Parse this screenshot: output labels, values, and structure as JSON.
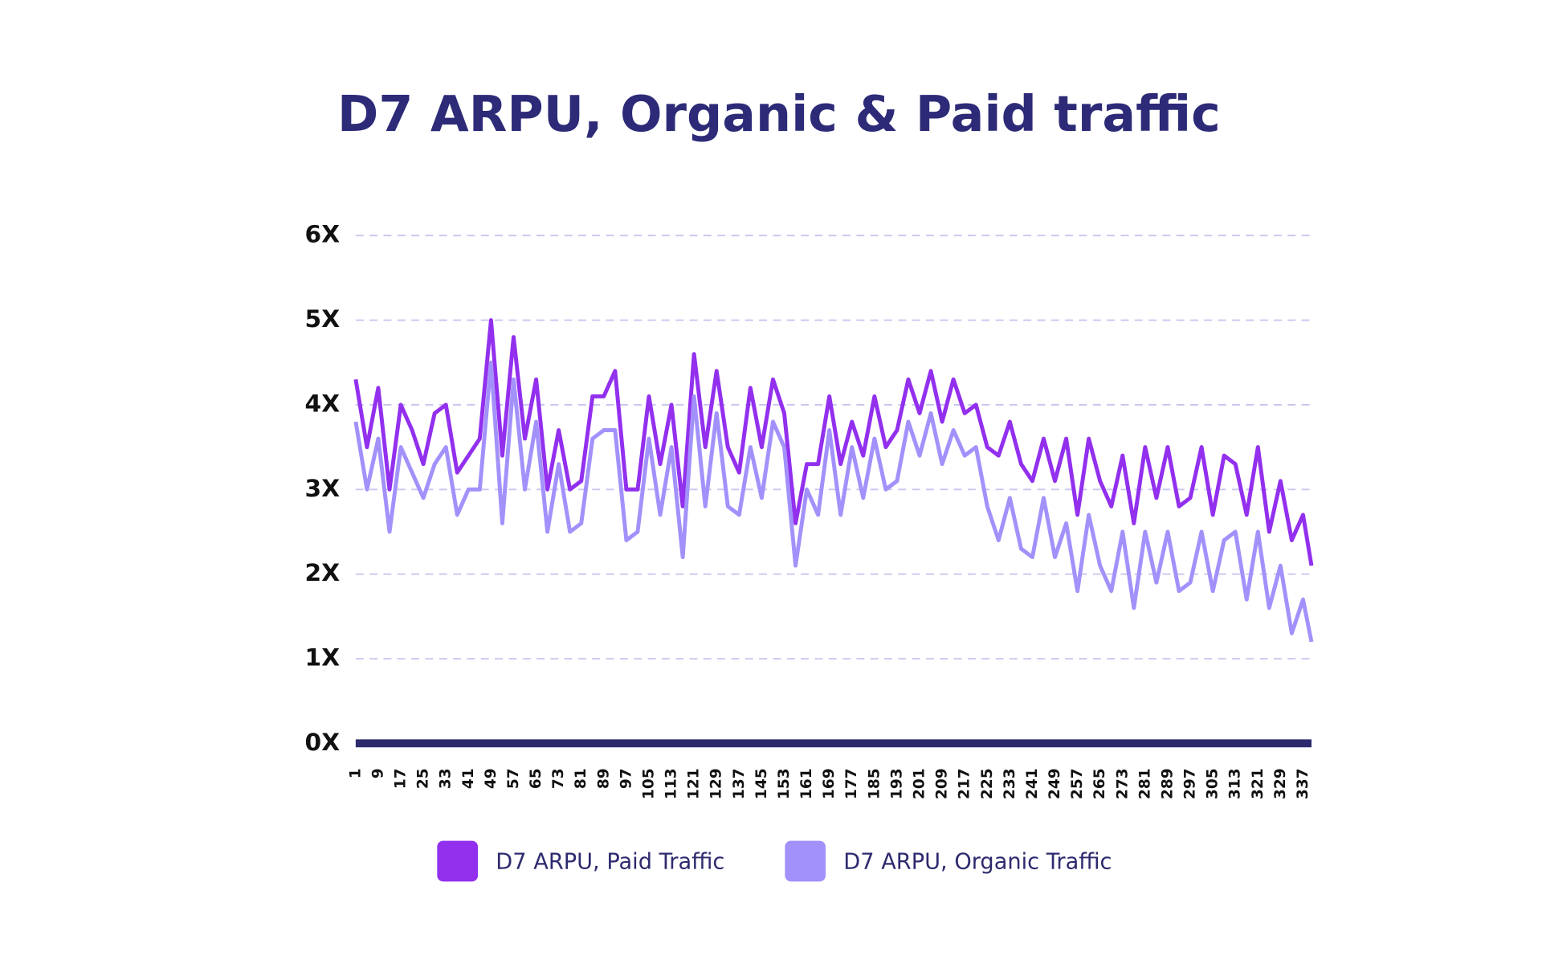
{
  "chart_data": {
    "type": "line",
    "title": "D7 ARPU, Organic & Paid traffic",
    "x": [
      1,
      5,
      9,
      13,
      17,
      21,
      25,
      29,
      33,
      37,
      41,
      45,
      49,
      53,
      57,
      61,
      65,
      69,
      73,
      77,
      81,
      85,
      89,
      93,
      97,
      101,
      105,
      109,
      113,
      117,
      121,
      125,
      129,
      133,
      137,
      141,
      145,
      149,
      153,
      157,
      161,
      165,
      169,
      173,
      177,
      181,
      185,
      189,
      193,
      197,
      201,
      205,
      209,
      213,
      217,
      221,
      225,
      229,
      233,
      237,
      241,
      245,
      249,
      253,
      257,
      261,
      265,
      269,
      273,
      277,
      281,
      285,
      289,
      293,
      297,
      301,
      305,
      309,
      313,
      317,
      321,
      325,
      329,
      333,
      337,
      340
    ],
    "series": [
      {
        "name": "D7 ARPU, Paid Traffic",
        "color": "#9230ee",
        "values": [
          4.3,
          3.5,
          4.2,
          3.0,
          4.0,
          3.7,
          3.3,
          3.9,
          4.0,
          3.2,
          3.4,
          3.6,
          5.0,
          3.4,
          4.8,
          3.6,
          4.3,
          3.0,
          3.7,
          3.0,
          3.1,
          4.1,
          4.1,
          4.4,
          3.0,
          3.0,
          4.1,
          3.3,
          4.0,
          2.8,
          4.6,
          3.5,
          4.4,
          3.5,
          3.2,
          4.2,
          3.5,
          4.3,
          3.9,
          2.6,
          3.3,
          3.3,
          4.1,
          3.3,
          3.8,
          3.4,
          4.1,
          3.5,
          3.7,
          4.3,
          3.9,
          4.4,
          3.8,
          4.3,
          3.9,
          4.0,
          3.5,
          3.4,
          3.8,
          3.3,
          3.1,
          3.6,
          3.1,
          3.6,
          2.7,
          3.6,
          3.1,
          2.8,
          3.4,
          2.6,
          3.5,
          2.9,
          3.5,
          2.8,
          2.9,
          3.5,
          2.7,
          3.4,
          3.3,
          2.7,
          3.5,
          2.5,
          3.1,
          2.4,
          2.7,
          2.1
        ]
      },
      {
        "name": "D7 ARPU, Organic Traffic",
        "color": "#a391fb",
        "values": [
          3.8,
          3.0,
          3.6,
          2.5,
          3.5,
          3.2,
          2.9,
          3.3,
          3.5,
          2.7,
          3.0,
          3.0,
          4.5,
          2.6,
          4.3,
          3.0,
          3.8,
          2.5,
          3.3,
          2.5,
          2.6,
          3.6,
          3.7,
          3.7,
          2.4,
          2.5,
          3.6,
          2.7,
          3.5,
          2.2,
          4.1,
          2.8,
          3.9,
          2.8,
          2.7,
          3.5,
          2.9,
          3.8,
          3.5,
          2.1,
          3.0,
          2.7,
          3.7,
          2.7,
          3.5,
          2.9,
          3.6,
          3.0,
          3.1,
          3.8,
          3.4,
          3.9,
          3.3,
          3.7,
          3.4,
          3.5,
          2.8,
          2.4,
          2.9,
          2.3,
          2.2,
          2.9,
          2.2,
          2.6,
          1.8,
          2.7,
          2.1,
          1.8,
          2.5,
          1.6,
          2.5,
          1.9,
          2.5,
          1.8,
          1.9,
          2.5,
          1.8,
          2.4,
          2.5,
          1.7,
          2.5,
          1.6,
          2.1,
          1.3,
          1.7,
          1.2
        ]
      }
    ],
    "xlim": [
      1,
      340
    ],
    "xticks": [
      1,
      9,
      17,
      25,
      33,
      41,
      49,
      57,
      65,
      73,
      81,
      89,
      97,
      105,
      113,
      121,
      129,
      137,
      145,
      153,
      161,
      169,
      177,
      185,
      193,
      201,
      209,
      217,
      225,
      233,
      241,
      249,
      257,
      265,
      273,
      281,
      289,
      297,
      305,
      313,
      321,
      329,
      337
    ],
    "ylim": [
      0,
      6
    ],
    "yticks": [
      {
        "value": 0,
        "label": "0X"
      },
      {
        "value": 1,
        "label": "1X"
      },
      {
        "value": 2,
        "label": "2X"
      },
      {
        "value": 3,
        "label": "3X"
      },
      {
        "value": 4,
        "label": "4X"
      },
      {
        "value": 5,
        "label": "5X"
      },
      {
        "value": 6,
        "label": "6X"
      }
    ],
    "grid": true
  }
}
